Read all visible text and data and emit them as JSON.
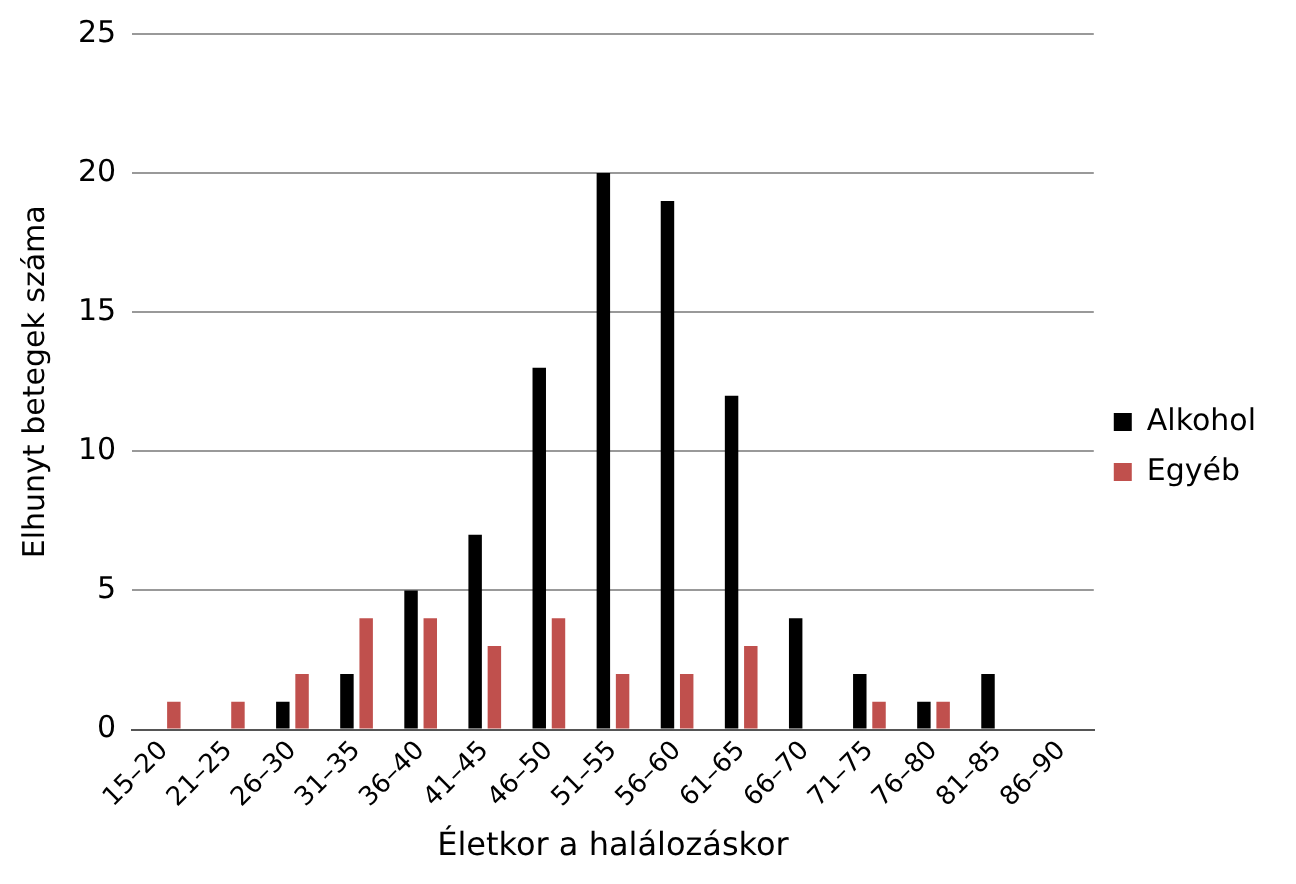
{
  "chart_data": {
    "type": "bar",
    "xlabel": "Életkor a halálozáskor",
    "ylabel": "Elhunyt betegek száma",
    "categories": [
      "15–20",
      "21–25",
      "26–30",
      "31–35",
      "36–40",
      "41–45",
      "46–50",
      "51–55",
      "56–60",
      "61–65",
      "66–70",
      "71–75",
      "76–80",
      "81–85",
      "86–90"
    ],
    "series": [
      {
        "name": "Alkohol",
        "color": "#000000",
        "values": [
          0,
          0,
          1,
          2,
          5,
          7,
          13,
          20,
          19,
          12,
          4,
          2,
          1,
          2,
          0
        ]
      },
      {
        "name": "Egyéb",
        "color": "#c0504d",
        "values": [
          1,
          1,
          2,
          4,
          4,
          3,
          4,
          2,
          2,
          3,
          0,
          1,
          1,
          0,
          0
        ]
      }
    ],
    "ylim": [
      0,
      25
    ],
    "yticks": [
      0,
      5,
      10,
      15,
      20,
      25
    ],
    "grid": "y",
    "legend": "right"
  }
}
